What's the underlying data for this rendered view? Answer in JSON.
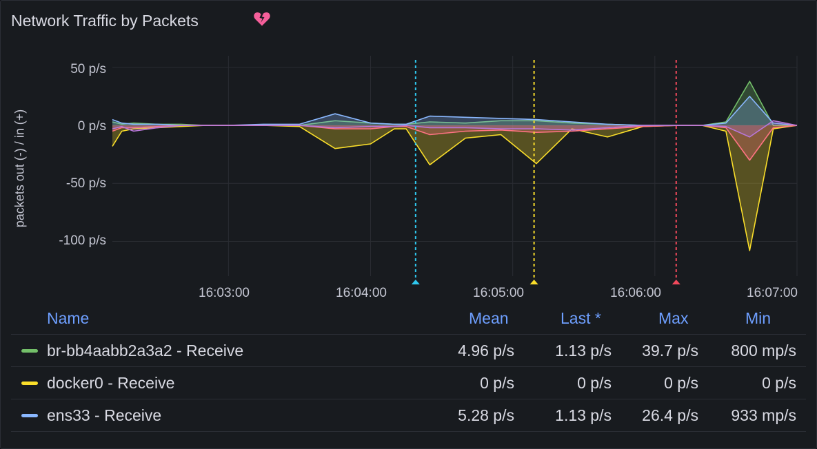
{
  "panel": {
    "title": "Network Traffic by Packets",
    "icon": "broken-heart-icon"
  },
  "chart_data": {
    "type": "area",
    "ylabel": "packets out (-) / in (+)",
    "y_ticks": [
      "50 p/s",
      "0 p/s",
      "-50 p/s",
      "-100 p/s"
    ],
    "y_tick_values": [
      50,
      0,
      -50,
      -100
    ],
    "ylim": [
      -130,
      60
    ],
    "x_ticks": [
      "16:03:00",
      "16:04:00",
      "16:05:00",
      "16:06:00",
      "16:07:00"
    ],
    "x_tick_seconds": [
      180,
      240,
      300,
      360,
      420
    ],
    "xlim": [
      131,
      420
    ],
    "grid": true,
    "annotations": [
      {
        "time_seconds": 259,
        "color": "#2fc8ee"
      },
      {
        "time_seconds": 309,
        "color": "#fade2a"
      },
      {
        "time_seconds": 369,
        "color": "#f2495c"
      }
    ],
    "x": [
      131,
      135,
      140,
      150,
      160,
      170,
      180,
      195,
      210,
      225,
      240,
      250,
      255,
      265,
      280,
      295,
      310,
      325,
      340,
      355,
      370,
      380,
      390,
      400,
      410,
      420
    ],
    "series": [
      {
        "name": "br-bb4aabb2a3a2 - Receive",
        "color": "#73bf69",
        "values": [
          3,
          1,
          2,
          1,
          1,
          0,
          0,
          0,
          0,
          4,
          2,
          1,
          1,
          3,
          2,
          4,
          4,
          2,
          1,
          0,
          0,
          0,
          3,
          38,
          0,
          0
        ]
      },
      {
        "name": "docker0 - Receive",
        "color": "#fade2a",
        "values": [
          -18,
          -5,
          -3,
          -2,
          -1,
          0,
          0,
          0,
          -1,
          -20,
          -16,
          -3,
          -3,
          -34,
          -11,
          -8,
          -33,
          -3,
          -10,
          -1,
          0,
          0,
          -5,
          -108,
          -3,
          0
        ]
      },
      {
        "name": "ens33 - Receive",
        "color": "#8ab8ff",
        "values": [
          5,
          2,
          1,
          1,
          0,
          0,
          0,
          1,
          1,
          10,
          2,
          1,
          1,
          8,
          7,
          6,
          5,
          3,
          1,
          0,
          0,
          0,
          2,
          25,
          2,
          0
        ]
      },
      {
        "color": "#ff7383",
        "values": [
          -5,
          -2,
          -2,
          -1,
          0,
          0,
          0,
          0,
          0,
          -3,
          -3,
          -1,
          -1,
          -8,
          -5,
          -4,
          -6,
          -5,
          -3,
          -1,
          0,
          0,
          -2,
          -30,
          -2,
          0
        ]
      },
      {
        "color": "#b877d9",
        "values": [
          -3,
          -1,
          -5,
          -2,
          0,
          0,
          0,
          0,
          0,
          -2,
          -1,
          -1,
          0,
          -2,
          -2,
          -3,
          -3,
          -4,
          -2,
          0,
          0,
          0,
          -1,
          -10,
          4,
          0
        ]
      }
    ]
  },
  "legend": {
    "headers": {
      "name": "Name",
      "mean": "Mean",
      "last": "Last *",
      "max": "Max",
      "min": "Min"
    },
    "rows": [
      {
        "name": "br-bb4aabb2a3a2 - Receive",
        "color": "#73bf69",
        "mean": "4.96 p/s",
        "last": "1.13 p/s",
        "max": "39.7 p/s",
        "min": "800 mp/s"
      },
      {
        "name": "docker0 - Receive",
        "color": "#fade2a",
        "mean": "0 p/s",
        "last": "0 p/s",
        "max": "0 p/s",
        "min": "0 p/s"
      },
      {
        "name": "ens33 - Receive",
        "color": "#8ab8ff",
        "mean": "5.28 p/s",
        "last": "1.13 p/s",
        "max": "26.4 p/s",
        "min": "933 mp/s"
      }
    ]
  }
}
